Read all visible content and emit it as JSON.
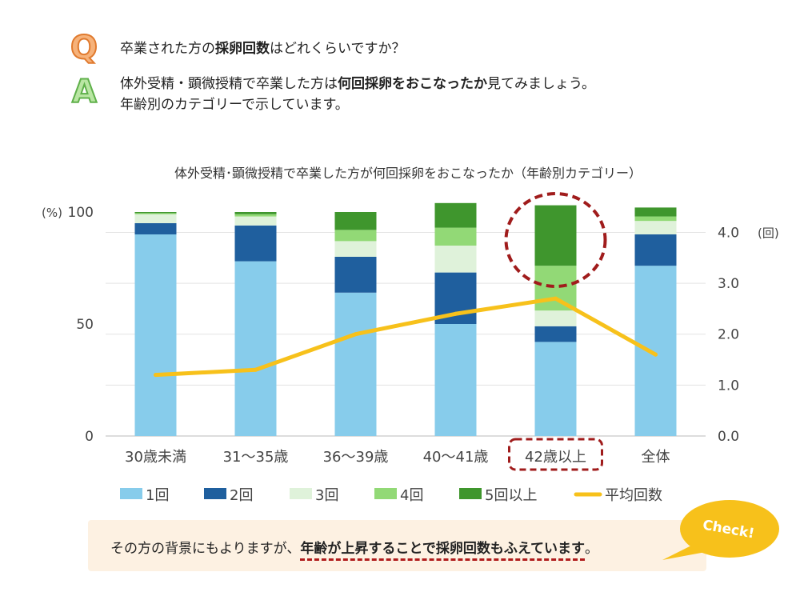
{
  "qa": {
    "q_letter": "Q",
    "q_text_before": "卒業された方の",
    "q_text_bold": "採卵回数",
    "q_text_after": "はどれくらいですか？",
    "a_letter": "A",
    "a_line1_before": "体外受精・顕微授精で卒業した方は",
    "a_line1_bold": "何回採卵をおこなったか",
    "a_line1_after": "見てみましょう。",
    "a_line2": "年齢別のカテゴリーで示しています。"
  },
  "chart_data": {
    "type": "bar",
    "stacked": true,
    "title": "体外受精･顕微授精で卒業した方が何回採卵をおこなったか（年齢別カテゴリー）",
    "categories": [
      "30歳未満",
      "31～35歳",
      "36～39歳",
      "40～41歳",
      "42歳以上",
      "全体"
    ],
    "highlight_category_index": 4,
    "ylabel_left": "(%)",
    "ylabel_right": "(回)",
    "ylim_left": [
      0,
      100
    ],
    "ylim_right": [
      0,
      4.4
    ],
    "left_ticks": [
      "0",
      "50",
      "100"
    ],
    "right_ticks": [
      "0.0",
      "1.0",
      "2.0",
      "3.0",
      "4.0"
    ],
    "series": [
      {
        "name": "1回",
        "color": "#87cceb",
        "values": [
          90,
          78,
          64,
          50,
          42,
          76
        ]
      },
      {
        "name": "2回",
        "color": "#1f5f9e",
        "values": [
          5,
          16,
          16,
          23,
          7,
          14
        ]
      },
      {
        "name": "3回",
        "color": "#dff2da",
        "values": [
          4,
          4,
          7,
          12,
          7,
          6
        ]
      },
      {
        "name": "4回",
        "color": "#92d976",
        "values": [
          0.5,
          1,
          5,
          8,
          20,
          2
        ]
      },
      {
        "name": "5回以上",
        "color": "#3f962d",
        "values": [
          0.5,
          1,
          8,
          11,
          27,
          4
        ]
      }
    ],
    "line": {
      "name": "平均回数",
      "color": "#f7c11b",
      "values": [
        1.2,
        1.3,
        2.0,
        2.4,
        2.7,
        1.6
      ]
    }
  },
  "note": {
    "before": "その方の背景にもよりますが、",
    "emphasis": "年齢が上昇することで採卵回数もふえています",
    "after": "。",
    "badge": "Check!"
  }
}
